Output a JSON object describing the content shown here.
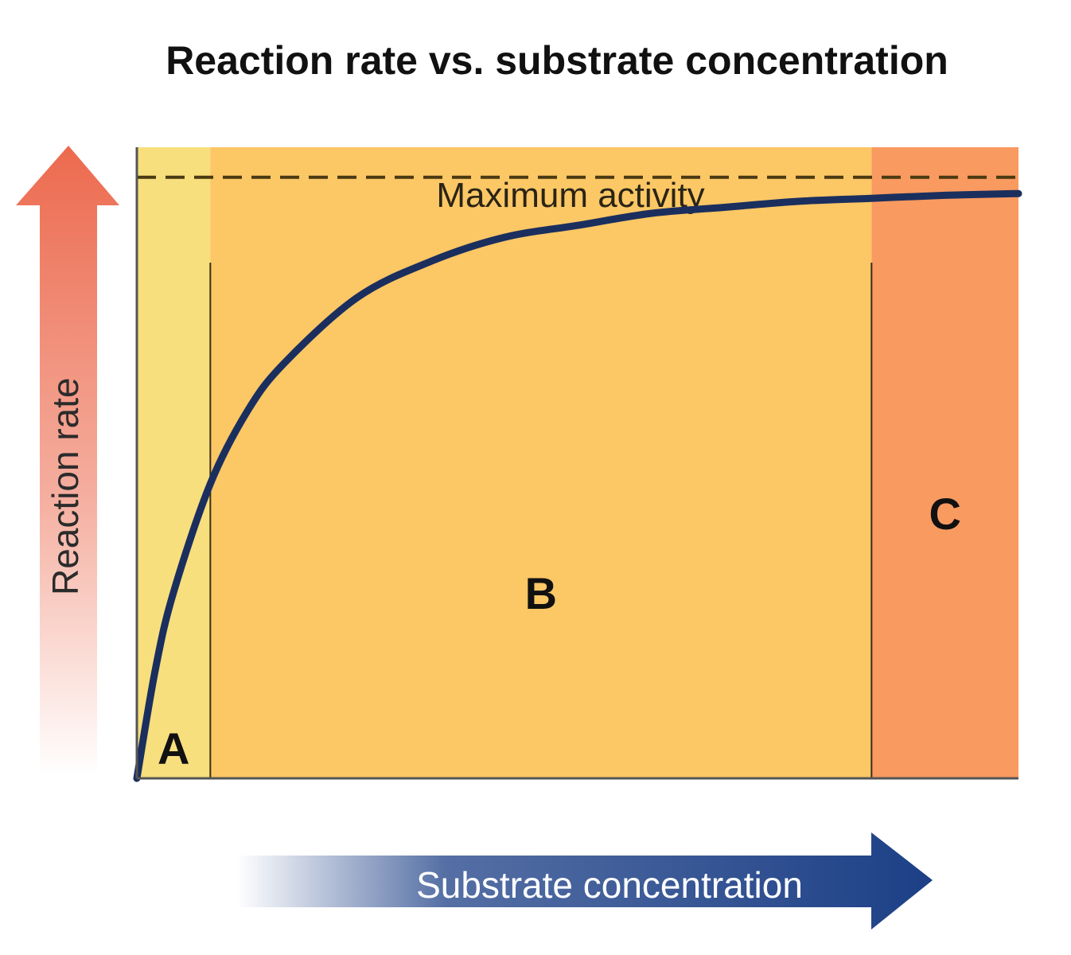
{
  "chart_data": {
    "type": "line",
    "title": "Reaction rate vs. substrate concentration",
    "xlabel": "Substrate concentration",
    "ylabel": "Reaction rate",
    "xlim": [
      0,
      12
    ],
    "ylim": [
      0,
      1.05
    ],
    "grid": false,
    "series": [
      {
        "x": [
          0,
          0.25,
          0.5,
          1,
          1.5,
          2,
          3,
          4,
          5,
          6,
          7,
          8,
          9,
          10,
          11,
          12
        ],
        "values": [
          0,
          0.18,
          0.31,
          0.49,
          0.61,
          0.69,
          0.8,
          0.86,
          0.9,
          0.92,
          0.94,
          0.95,
          0.96,
          0.965,
          0.97,
          0.973
        ]
      }
    ],
    "reference_line": {
      "label": "Maximum activity",
      "y": 1.0
    },
    "regions": [
      {
        "label": "A",
        "x_start": 0,
        "x_end": 1,
        "color": "#f8df7d"
      },
      {
        "label": "B",
        "x_start": 1,
        "x_end": 10,
        "color": "#fcc765"
      },
      {
        "label": "C",
        "x_start": 10,
        "x_end": 12,
        "color": "#f99a60"
      }
    ],
    "colors": {
      "curve": "#1b2f5e",
      "reference_line": "#4a3a12",
      "y_arrow": "#ec6a4e",
      "x_arrow": "#1c3f86"
    }
  }
}
